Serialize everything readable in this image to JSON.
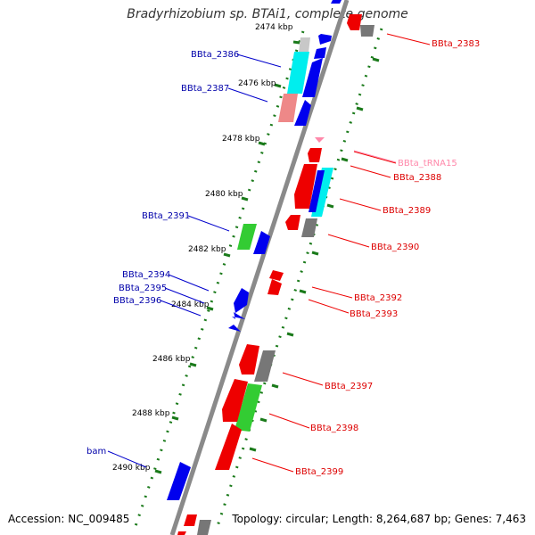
{
  "title": "Bradyrhizobium sp. BTAi1, complete genome",
  "accession": "Accession: NC_009485",
  "summary": "Topology: circular; Length: 8,264,687 bp; Genes: 7,463",
  "colors": {
    "forward_strand_label": "#0000aa",
    "reverse_strand_label": "#dd0000",
    "trna_label": "#ff88aa",
    "backbone": "#888888",
    "scale_dots": "#117711",
    "cds_forward": "#0000ee",
    "cds_reverse": "#ee0000",
    "gene_grey": "#777777",
    "gene_cyan": "#00eeee",
    "gene_green": "#33cc33",
    "gene_pink": "#ee8888"
  },
  "scale_labels": [
    "2474 kbp",
    "2476 kbp",
    "2478 kbp",
    "2480 kbp",
    "2482 kbp",
    "2484 kbp",
    "2486 kbp",
    "2488 kbp",
    "2490 kbp"
  ],
  "forward_labels": [
    "BBta_2386",
    "BBta_2387",
    "BBta_2391",
    "BBta_2394",
    "BBta_2395",
    "BBta_2396",
    "bam"
  ],
  "reverse_labels": [
    "BBta_2383",
    "BBta_tRNA15",
    "BBta_2388",
    "BBta_2389",
    "BBta_2390",
    "BBta_2392",
    "BBta_2393",
    "BBta_2397",
    "BBta_2398",
    "BBta_2399"
  ]
}
